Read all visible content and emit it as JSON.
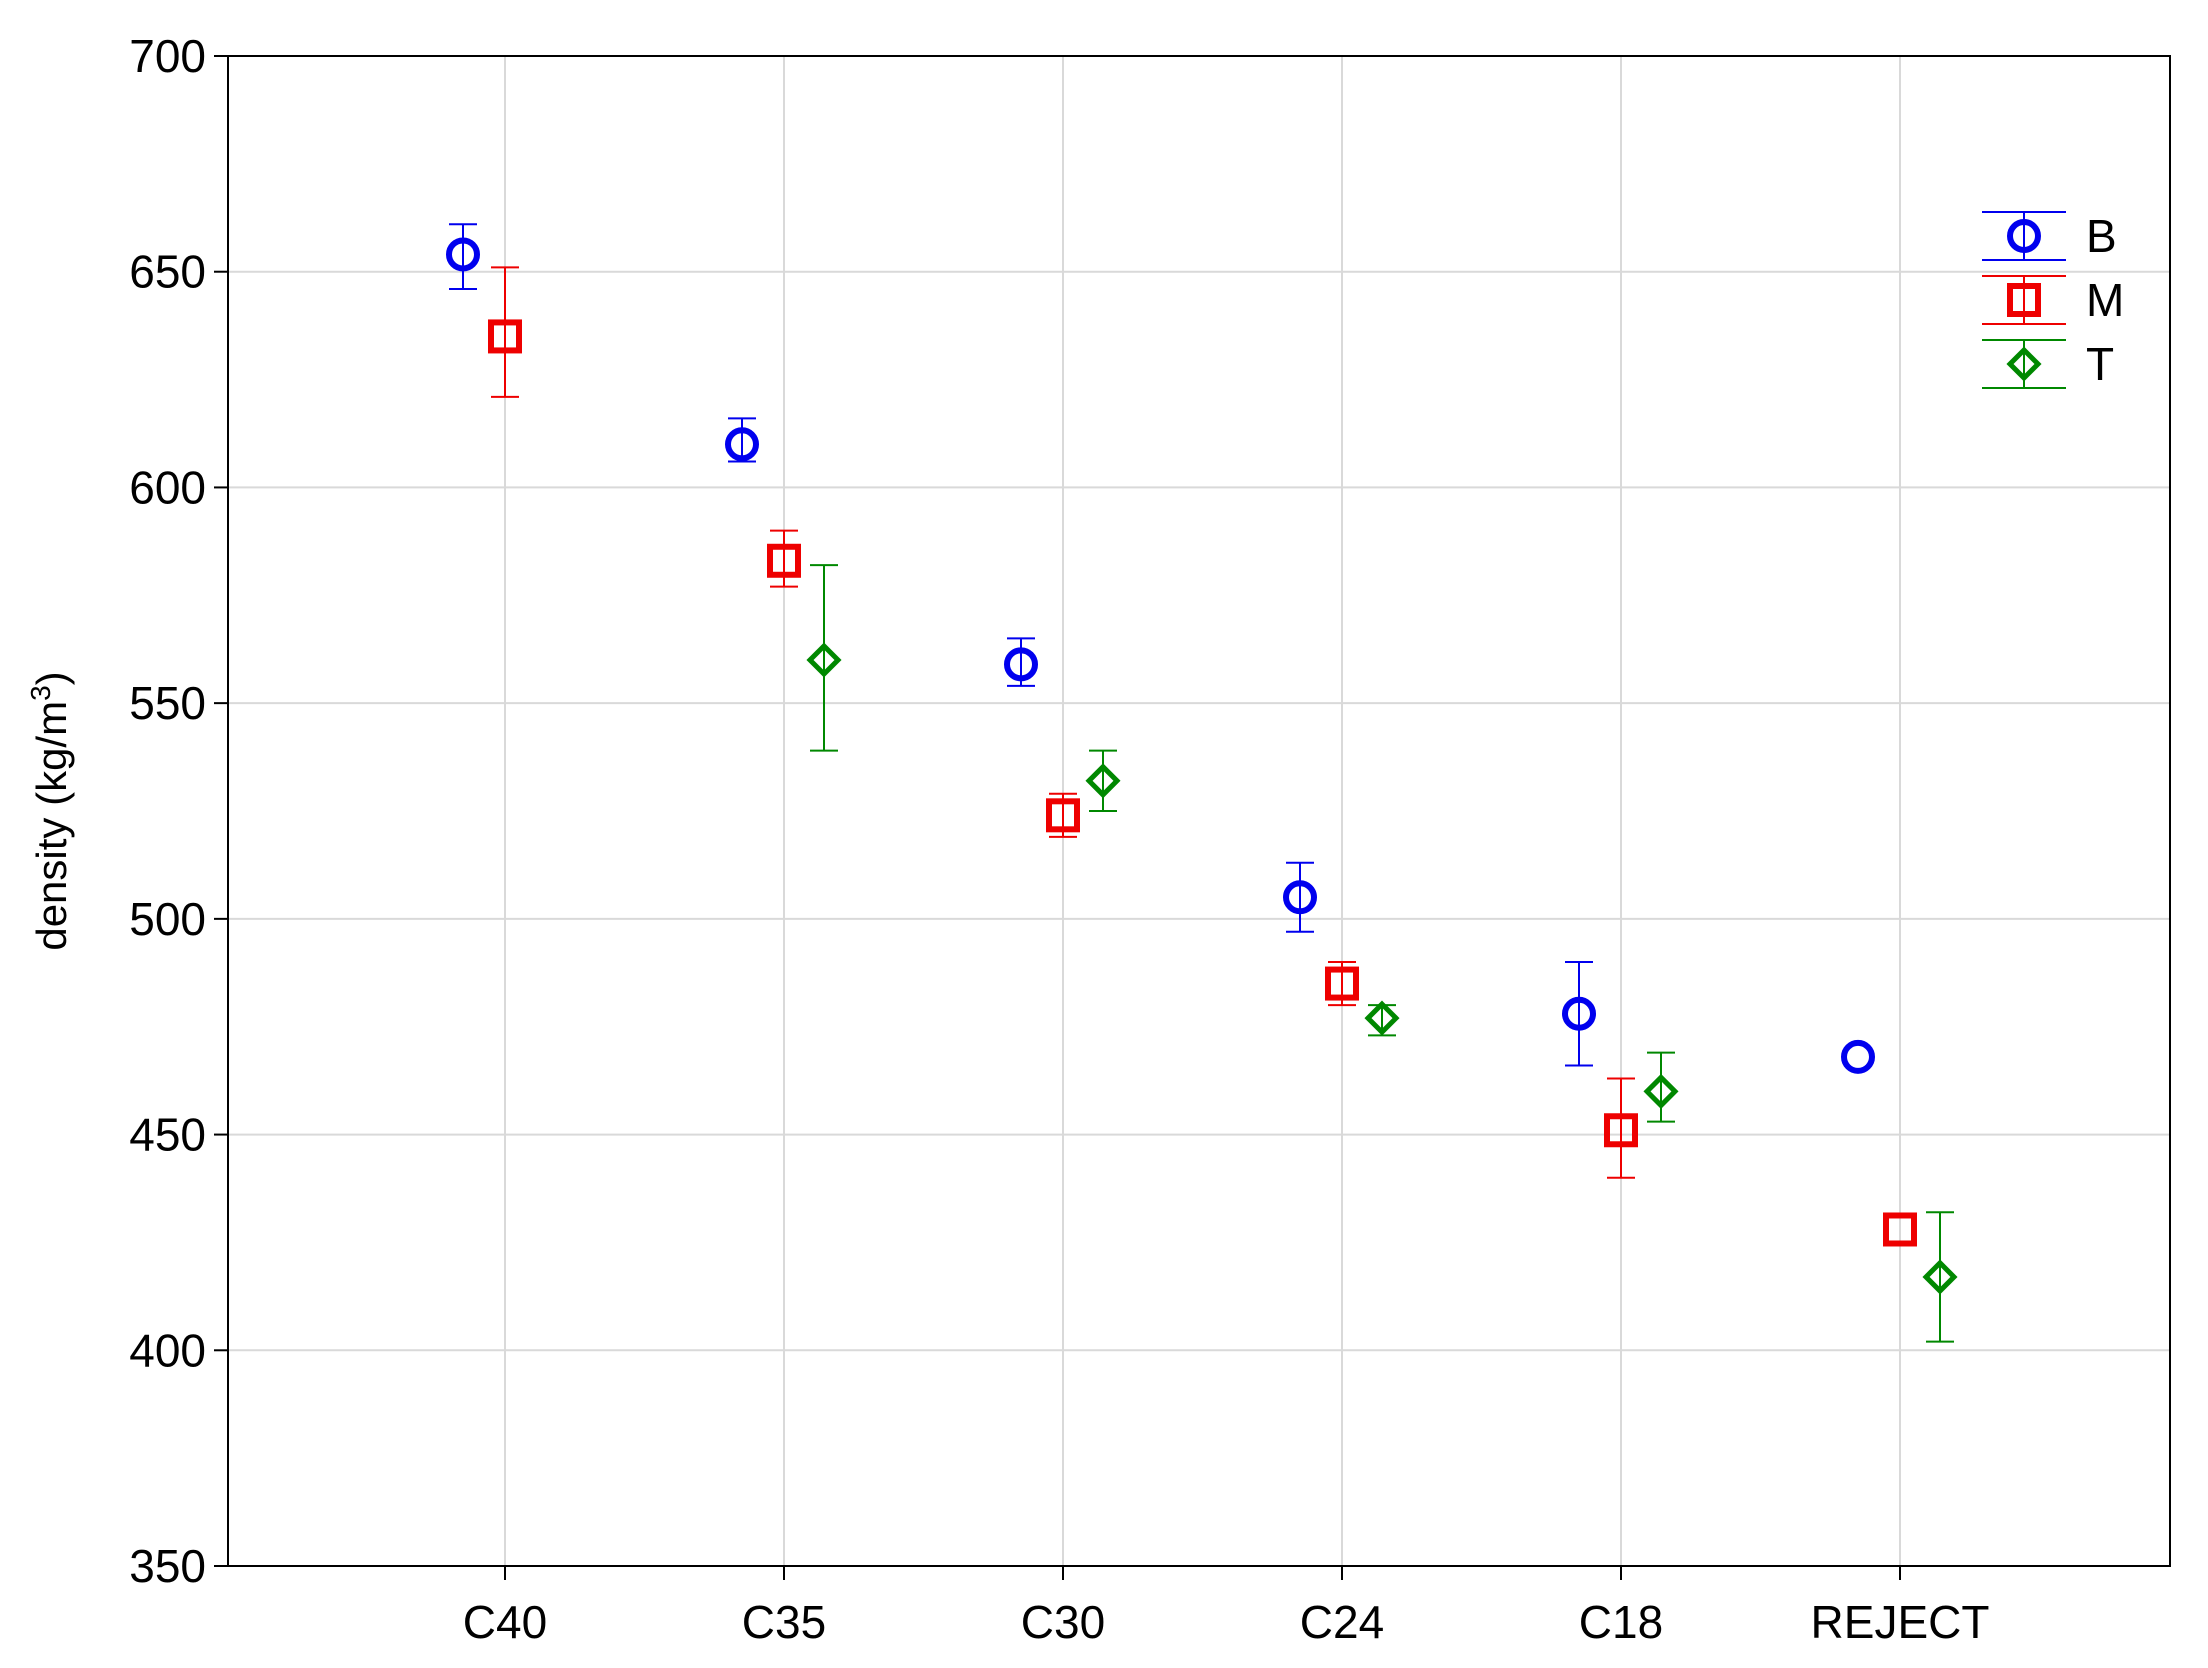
{
  "chart_data": {
    "type": "scatter",
    "title": "",
    "xlabel": "",
    "ylabel": "density (kg/m",
    "ylabel_superscript": "3",
    "ylabel_close": ")",
    "categories": [
      "C40",
      "C35",
      "C30",
      "C24",
      "C18",
      "REJECT"
    ],
    "ylim": [
      350,
      700
    ],
    "yticks": [
      "350",
      "400",
      "450",
      "500",
      "550",
      "600",
      "650",
      "700"
    ],
    "grid": true,
    "legend_position": "top-right",
    "series": [
      {
        "name": "B",
        "marker": "circle",
        "color": "#0000ee",
        "values": [
          654,
          610,
          559,
          505,
          478,
          468
        ],
        "lower": [
          646,
          606,
          554,
          497,
          466,
          null
        ],
        "upper": [
          661,
          616,
          565,
          513,
          490,
          null
        ]
      },
      {
        "name": "M",
        "marker": "square",
        "color": "#ee0000",
        "values": [
          635,
          583,
          524,
          485,
          451,
          428
        ],
        "lower": [
          621,
          577,
          519,
          480,
          440,
          null
        ],
        "upper": [
          651,
          590,
          529,
          490,
          463,
          null
        ]
      },
      {
        "name": "T",
        "marker": "diamond",
        "color": "#008800",
        "values": [
          null,
          560,
          532,
          477,
          460,
          417
        ],
        "lower": [
          null,
          539,
          525,
          473,
          453,
          402
        ],
        "upper": [
          null,
          582,
          539,
          480,
          469,
          432
        ]
      }
    ]
  }
}
